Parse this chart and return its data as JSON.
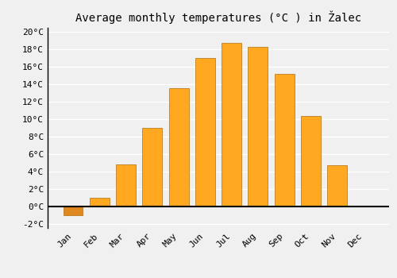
{
  "title": "Average monthly temperatures (°C ) in Žalec",
  "months": [
    "Jan",
    "Feb",
    "Mar",
    "Apr",
    "May",
    "Jun",
    "Jul",
    "Aug",
    "Sep",
    "Oct",
    "Nov",
    "Dec"
  ],
  "values": [
    -1.0,
    1.0,
    4.8,
    9.0,
    13.6,
    17.0,
    18.8,
    18.3,
    15.2,
    10.4,
    4.7,
    0.0
  ],
  "bar_color_positive": "#FFA820",
  "bar_color_negative": "#E08820",
  "bar_edge_color": "#B07010",
  "ylim": [
    -2.5,
    20.5
  ],
  "yticks": [
    -2,
    0,
    2,
    4,
    6,
    8,
    10,
    12,
    14,
    16,
    18,
    20
  ],
  "background_color": "#f0f0f0",
  "plot_bg_color": "#f0f0f0",
  "grid_color": "#ffffff",
  "title_fontsize": 10,
  "tick_fontsize": 8,
  "font_family": "monospace",
  "bar_width": 0.75
}
